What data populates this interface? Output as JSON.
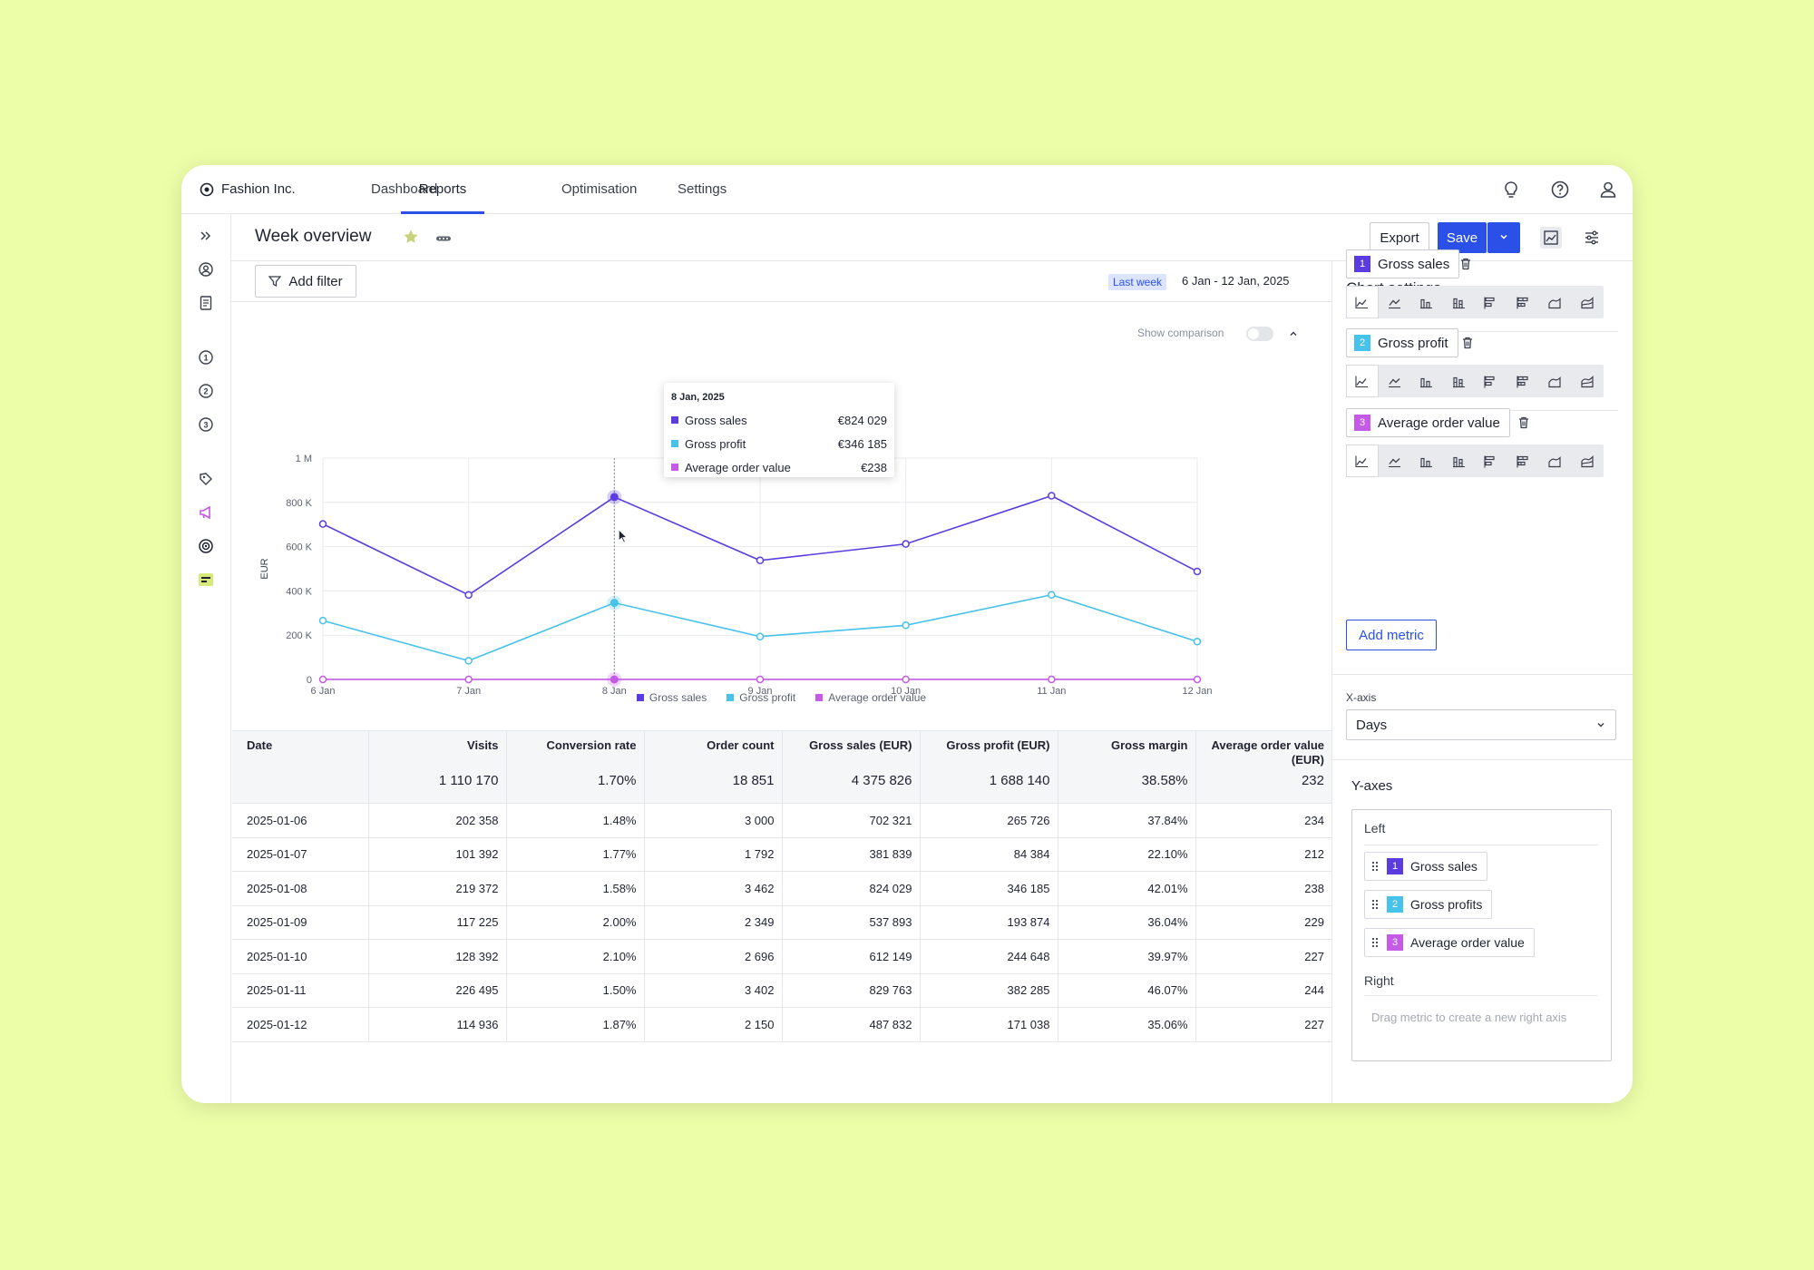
{
  "app": {
    "brand": "Fashion Inc.",
    "nav": [
      "Dashboard",
      "Reports",
      "Optimisation",
      "Settings"
    ],
    "active_nav": "Reports"
  },
  "icons": {
    "top": [
      "lightbulb-icon",
      "help-icon",
      "user-icon"
    ],
    "rail": [
      "expand-icon",
      "account-icon",
      "document-icon",
      "step-1-icon",
      "step-2-icon",
      "step-3-icon",
      "tag-icon",
      "megaphone-icon",
      "target-icon",
      "reports-icon"
    ]
  },
  "colors": {
    "accent": "#2b50e8",
    "gross_sales": "#5b3ce0",
    "gross_profit": "#47c2ea",
    "avg_order": "#c45ae6",
    "megaphone": "#c45ae6",
    "reports_highlight": "#d8e87a"
  },
  "header": {
    "title": "Week overview",
    "export": "Export",
    "save": "Save"
  },
  "filters": {
    "add_filter": "Add filter",
    "date_badge": "Last week",
    "date_range": "6 Jan - 12 Jan, 2025",
    "show_comparison": "Show comparison",
    "show_comparison_on": false
  },
  "chart_data": {
    "type": "line",
    "x": [
      "6 Jan",
      "7 Jan",
      "8 Jan",
      "9 Jan",
      "10 Jan",
      "11 Jan",
      "12 Jan"
    ],
    "ylabel": "EUR",
    "ylim": [
      0,
      1000000
    ],
    "yticks": [
      "0",
      "200 K",
      "400 K",
      "600 K",
      "800 K",
      "1 M"
    ],
    "grid": true,
    "legend_position": "bottom",
    "series": [
      {
        "name": "Gross sales",
        "values": [
          702321,
          381839,
          824029,
          537893,
          612149,
          829763,
          487832
        ]
      },
      {
        "name": "Gross profit",
        "values": [
          265726,
          84384,
          346185,
          193874,
          244648,
          382285,
          171038
        ]
      },
      {
        "name": "Average order value",
        "values": [
          234,
          212,
          238,
          229,
          227,
          244,
          227
        ]
      }
    ],
    "tooltip": {
      "date": "8 Jan, 2025",
      "rows": [
        {
          "name": "Gross sales",
          "value": "€824 029"
        },
        {
          "name": "Gross profit",
          "value": "€346 185"
        },
        {
          "name": "Average order value",
          "value": "€238"
        }
      ]
    }
  },
  "table": {
    "columns": [
      {
        "label": "Date",
        "total": ""
      },
      {
        "label": "Visits",
        "total": "1 110 170"
      },
      {
        "label": "Conversion rate",
        "total": "1.70%"
      },
      {
        "label": "Order count",
        "total": "18 851"
      },
      {
        "label": "Gross sales (EUR)",
        "total": "4 375 826"
      },
      {
        "label": "Gross profit (EUR)",
        "total": "1 688 140"
      },
      {
        "label": "Gross margin",
        "total": "38.58%"
      },
      {
        "label": "Average order value (EUR)",
        "total": "232"
      }
    ],
    "rows": [
      [
        "2025-01-06",
        "202 358",
        "1.48%",
        "3 000",
        "702 321",
        "265 726",
        "37.84%",
        "234"
      ],
      [
        "2025-01-07",
        "101 392",
        "1.77%",
        "1 792",
        "381 839",
        "84 384",
        "22.10%",
        "212"
      ],
      [
        "2025-01-08",
        "219 372",
        "1.58%",
        "3 462",
        "824 029",
        "346 185",
        "42.01%",
        "238"
      ],
      [
        "2025-01-09",
        "117 225",
        "2.00%",
        "2 349",
        "537 893",
        "193 874",
        "36.04%",
        "229"
      ],
      [
        "2025-01-10",
        "128 392",
        "2.10%",
        "2 696",
        "612 149",
        "244 648",
        "39.97%",
        "227"
      ],
      [
        "2025-01-11",
        "226 495",
        "1.50%",
        "3 402",
        "829 763",
        "382 285",
        "46.07%",
        "244"
      ],
      [
        "2025-01-12",
        "114 936",
        "1.87%",
        "2 150",
        "487 832",
        "171 038",
        "35.06%",
        "227"
      ]
    ]
  },
  "settings": {
    "title": "Chart settings",
    "metrics": [
      {
        "num": "1",
        "name": "Gross sales"
      },
      {
        "num": "2",
        "name": "Gross profit"
      },
      {
        "num": "3",
        "name": "Average order value"
      }
    ],
    "chart_types": [
      "line-chart-icon",
      "area-line-icon",
      "bar-chart-icon",
      "grouped-bar-icon",
      "horizontal-bar-icon",
      "stacked-horizontal-bar-icon",
      "area-chart-icon",
      "stacked-area-icon"
    ],
    "add_metric": "Add metric",
    "xaxis_label": "X-axis",
    "xaxis_value": "Days",
    "yaxes_label": "Y-axes",
    "left_label": "Left",
    "left_axis": [
      {
        "num": "1",
        "name": "Gross sales"
      },
      {
        "num": "2",
        "name": "Gross profits"
      },
      {
        "num": "3",
        "name": "Average order value"
      }
    ],
    "right_label": "Right",
    "right_hint": "Drag metric to create a new right axis"
  }
}
